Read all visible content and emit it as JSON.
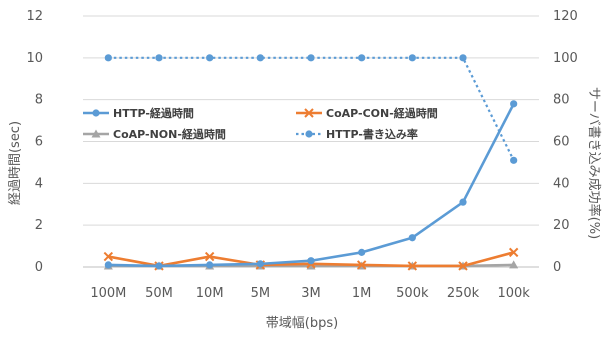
{
  "chart_data": {
    "type": "line",
    "xlabel": "帯域幅(bps)",
    "ylabel_left": "経過時間(sec)",
    "ylabel_right": "サーバ書き込み成功率(%)",
    "categories": [
      "100M",
      "50M",
      "10M",
      "5M",
      "3M",
      "1M",
      "500k",
      "250k",
      "100k"
    ],
    "y_left": {
      "min": 0,
      "max": 12,
      "ticks": [
        0,
        2,
        4,
        6,
        8,
        10,
        12
      ]
    },
    "y_right": {
      "min": 0,
      "max": 120,
      "ticks": [
        0,
        20,
        40,
        60,
        80,
        100,
        120
      ]
    },
    "grid": true,
    "legend_position": "center-left",
    "series": [
      {
        "name": "HTTP-経過時間",
        "axis": "left",
        "style": "solid",
        "marker": "circle",
        "color": "#5B9BD5",
        "values": [
          0.1,
          0.05,
          0.1,
          0.15,
          0.3,
          0.7,
          1.4,
          3.1,
          7.8
        ]
      },
      {
        "name": "CoAP-CON-経過時間",
        "axis": "left",
        "style": "solid",
        "marker": "x",
        "color": "#ED7D31",
        "values": [
          0.5,
          0.05,
          0.5,
          0.1,
          0.15,
          0.1,
          0.05,
          0.05,
          0.7
        ]
      },
      {
        "name": "CoAP-NON-経過時間",
        "axis": "left",
        "style": "solid",
        "marker": "triangle",
        "color": "#A5A5A5",
        "values": [
          0.05,
          0.05,
          0.05,
          0.05,
          0.05,
          0.05,
          0.05,
          0.05,
          0.1
        ]
      },
      {
        "name": "HTTP-書き込み率",
        "axis": "right",
        "style": "dotted",
        "marker": "circle",
        "color": "#5B9BD5",
        "values": [
          100,
          100,
          100,
          100,
          100,
          100,
          100,
          100,
          51
        ]
      }
    ]
  }
}
